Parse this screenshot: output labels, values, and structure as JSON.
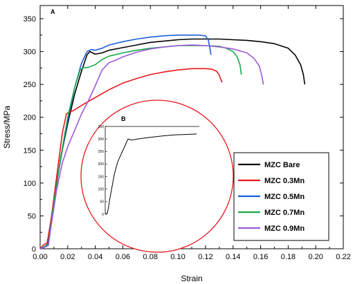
{
  "chart_data": {
    "type": "line",
    "xlabel": "Strain",
    "ylabel": "Stress/MPa",
    "xlim": [
      0.0,
      0.22
    ],
    "ylim": [
      0,
      370
    ],
    "x_ticks": [
      "0.00",
      "0.02",
      "0.04",
      "0.06",
      "0.08",
      "0.10",
      "0.12",
      "0.14",
      "0.16",
      "0.18",
      "0.20",
      "0.22"
    ],
    "y_ticks": [
      "0",
      "50",
      "100",
      "150",
      "200",
      "250",
      "300",
      "350"
    ],
    "panel_label": "A",
    "grid": false,
    "legend_position": "right",
    "series": [
      {
        "name": "MZC Bare",
        "color": "#000000",
        "points": [
          [
            0.0,
            0
          ],
          [
            0.003,
            3
          ],
          [
            0.005,
            5
          ],
          [
            0.008,
            45
          ],
          [
            0.012,
            100
          ],
          [
            0.016,
            150
          ],
          [
            0.02,
            190
          ],
          [
            0.025,
            235
          ],
          [
            0.03,
            270
          ],
          [
            0.034,
            295
          ],
          [
            0.036,
            300
          ],
          [
            0.038,
            298
          ],
          [
            0.04,
            296
          ],
          [
            0.045,
            298
          ],
          [
            0.05,
            302
          ],
          [
            0.06,
            306
          ],
          [
            0.07,
            310
          ],
          [
            0.08,
            314
          ],
          [
            0.09,
            316
          ],
          [
            0.1,
            318
          ],
          [
            0.11,
            319
          ],
          [
            0.12,
            319
          ],
          [
            0.13,
            319
          ],
          [
            0.14,
            318
          ],
          [
            0.15,
            317
          ],
          [
            0.16,
            315
          ],
          [
            0.17,
            312
          ],
          [
            0.18,
            305
          ],
          [
            0.185,
            295
          ],
          [
            0.189,
            280
          ],
          [
            0.191,
            265
          ],
          [
            0.192,
            250
          ]
        ]
      },
      {
        "name": "MZC 0.3Mn",
        "color": "#e8161b",
        "points": [
          [
            0.0,
            0
          ],
          [
            0.002,
            5
          ],
          [
            0.004,
            8
          ],
          [
            0.005,
            8
          ],
          [
            0.008,
            45
          ],
          [
            0.012,
            110
          ],
          [
            0.016,
            175
          ],
          [
            0.019,
            205
          ],
          [
            0.021,
            208
          ],
          [
            0.024,
            210
          ],
          [
            0.03,
            218
          ],
          [
            0.04,
            230
          ],
          [
            0.05,
            242
          ],
          [
            0.06,
            252
          ],
          [
            0.07,
            259
          ],
          [
            0.08,
            265
          ],
          [
            0.09,
            269
          ],
          [
            0.1,
            272
          ],
          [
            0.11,
            274
          ],
          [
            0.12,
            274
          ],
          [
            0.125,
            273
          ],
          [
            0.128,
            270
          ],
          [
            0.13,
            264
          ],
          [
            0.131,
            258
          ],
          [
            0.132,
            253
          ]
        ]
      },
      {
        "name": "MZC 0.5Mn",
        "color": "#1560d8",
        "points": [
          [
            0.0,
            0
          ],
          [
            0.003,
            3
          ],
          [
            0.006,
            8
          ],
          [
            0.01,
            70
          ],
          [
            0.015,
            140
          ],
          [
            0.02,
            195
          ],
          [
            0.025,
            245
          ],
          [
            0.03,
            282
          ],
          [
            0.034,
            300
          ],
          [
            0.037,
            303
          ],
          [
            0.04,
            302
          ],
          [
            0.045,
            305
          ],
          [
            0.05,
            310
          ],
          [
            0.06,
            315
          ],
          [
            0.07,
            319
          ],
          [
            0.08,
            322
          ],
          [
            0.09,
            324
          ],
          [
            0.1,
            325
          ],
          [
            0.11,
            325
          ],
          [
            0.115,
            325
          ],
          [
            0.12,
            324
          ],
          [
            0.122,
            318
          ],
          [
            0.123,
            307
          ],
          [
            0.124,
            295
          ]
        ]
      },
      {
        "name": "MZC 0.7Mn",
        "color": "#17a84a",
        "points": [
          [
            0.0,
            0
          ],
          [
            0.003,
            3
          ],
          [
            0.006,
            8
          ],
          [
            0.01,
            70
          ],
          [
            0.015,
            140
          ],
          [
            0.02,
            200
          ],
          [
            0.025,
            245
          ],
          [
            0.029,
            272
          ],
          [
            0.031,
            275
          ],
          [
            0.035,
            276
          ],
          [
            0.04,
            280
          ],
          [
            0.045,
            288
          ],
          [
            0.05,
            293
          ],
          [
            0.06,
            298
          ],
          [
            0.07,
            302
          ],
          [
            0.08,
            305
          ],
          [
            0.09,
            307
          ],
          [
            0.1,
            309
          ],
          [
            0.11,
            309
          ],
          [
            0.12,
            309
          ],
          [
            0.13,
            308
          ],
          [
            0.135,
            305
          ],
          [
            0.14,
            300
          ],
          [
            0.143,
            292
          ],
          [
            0.145,
            280
          ],
          [
            0.146,
            265
          ]
        ]
      },
      {
        "name": "MZC 0.9Mn",
        "color": "#9b59d8",
        "points": [
          [
            0.0,
            0
          ],
          [
            0.003,
            2
          ],
          [
            0.006,
            5
          ],
          [
            0.008,
            35
          ],
          [
            0.012,
            90
          ],
          [
            0.016,
            130
          ],
          [
            0.02,
            155
          ],
          [
            0.025,
            180
          ],
          [
            0.03,
            205
          ],
          [
            0.035,
            225
          ],
          [
            0.04,
            248
          ],
          [
            0.045,
            272
          ],
          [
            0.05,
            283
          ],
          [
            0.055,
            287
          ],
          [
            0.06,
            292
          ],
          [
            0.07,
            299
          ],
          [
            0.08,
            304
          ],
          [
            0.09,
            307
          ],
          [
            0.1,
            309
          ],
          [
            0.11,
            310
          ],
          [
            0.12,
            309
          ],
          [
            0.13,
            307
          ],
          [
            0.14,
            304
          ],
          [
            0.15,
            298
          ],
          [
            0.155,
            290
          ],
          [
            0.159,
            278
          ],
          [
            0.161,
            262
          ],
          [
            0.162,
            250
          ]
        ]
      }
    ],
    "inset": {
      "panel_label": "B",
      "y_ticks": [
        "0",
        "50",
        "100",
        "150",
        "200",
        "250",
        "300",
        "350"
      ],
      "ylim": [
        0,
        350
      ],
      "line_color": "#000000",
      "circle_color": "#e8161b",
      "points": [
        [
          0.0,
          0
        ],
        [
          0.01,
          5
        ],
        [
          0.015,
          30
        ],
        [
          0.02,
          60
        ],
        [
          0.03,
          110
        ],
        [
          0.04,
          160
        ],
        [
          0.055,
          210
        ],
        [
          0.07,
          240
        ],
        [
          0.085,
          270
        ],
        [
          0.095,
          290
        ],
        [
          0.1,
          300
        ],
        [
          0.107,
          298
        ],
        [
          0.115,
          296
        ],
        [
          0.13,
          298
        ],
        [
          0.15,
          301
        ],
        [
          0.2,
          307
        ],
        [
          0.25,
          312
        ],
        [
          0.3,
          316
        ],
        [
          0.35,
          318
        ],
        [
          0.4,
          320
        ]
      ]
    }
  }
}
